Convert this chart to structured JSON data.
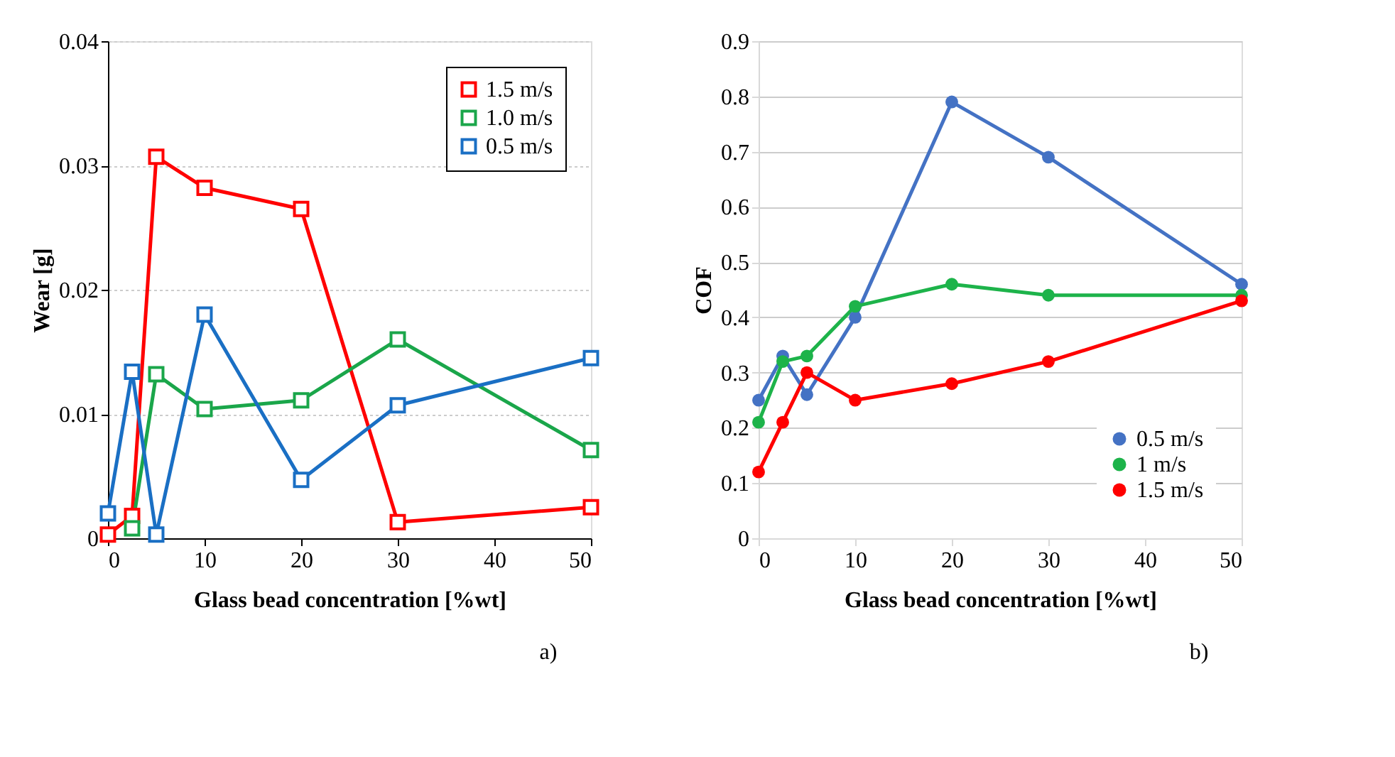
{
  "chart_data": [
    {
      "type": "line",
      "xlabel": "Glass bead concentration [%wt]",
      "ylabel": "Wear [g]",
      "x": [
        0,
        2.5,
        5,
        10,
        20,
        30,
        50
      ],
      "xlim": [
        0,
        50
      ],
      "xticks": [
        0,
        10,
        20,
        30,
        40,
        50
      ],
      "ylim": [
        0,
        0.04
      ],
      "yticks": [
        0,
        0.01,
        0.02,
        0.03,
        0.04
      ],
      "series": [
        {
          "name": "1.5 m/s",
          "color": "#ff0000",
          "values": [
            0.0003,
            0.0018,
            0.0307,
            0.0282,
            0.0265,
            0.0013,
            0.0025
          ]
        },
        {
          "name": "1.0 m/s",
          "color": "#1aa64a",
          "values": [
            null,
            0.0008,
            0.0132,
            0.0104,
            0.0111,
            0.016,
            0.0071
          ]
        },
        {
          "name": "0.5 m/s",
          "color": "#1a6fc4",
          "values": [
            0.002,
            0.0134,
            0.0003,
            0.018,
            0.0047,
            0.0107,
            0.0145
          ]
        }
      ],
      "marker": "square",
      "grid": "y",
      "legend": "top right",
      "annotations": [
        "a)"
      ]
    },
    {
      "type": "line",
      "xlabel": "Glass bead concentration [%wt]",
      "ylabel": "COF",
      "x": [
        0,
        2.5,
        5,
        10,
        20,
        30,
        50
      ],
      "xlim": [
        0,
        50
      ],
      "xticks": [
        0,
        10,
        20,
        30,
        40,
        50
      ],
      "ylim": [
        0,
        0.9
      ],
      "yticks": [
        0,
        0.1,
        0.2,
        0.3,
        0.4,
        0.5,
        0.6,
        0.7,
        0.8,
        0.9
      ],
      "series": [
        {
          "name": "0.5 m/s",
          "color": "#4472c4",
          "values": [
            0.25,
            0.33,
            0.26,
            0.4,
            0.79,
            0.69,
            0.46
          ]
        },
        {
          "name": "1 m/s",
          "color": "#1db34a",
          "values": [
            0.21,
            0.32,
            0.33,
            0.42,
            0.46,
            0.44,
            0.44
          ]
        },
        {
          "name": "1.5 m/s",
          "color": "#ff0000",
          "values": [
            0.12,
            0.21,
            0.3,
            0.25,
            0.28,
            0.32,
            0.43
          ]
        }
      ],
      "marker": "circle",
      "grid": "y",
      "legend": "bottom right",
      "annotations": [
        "b)"
      ]
    }
  ]
}
